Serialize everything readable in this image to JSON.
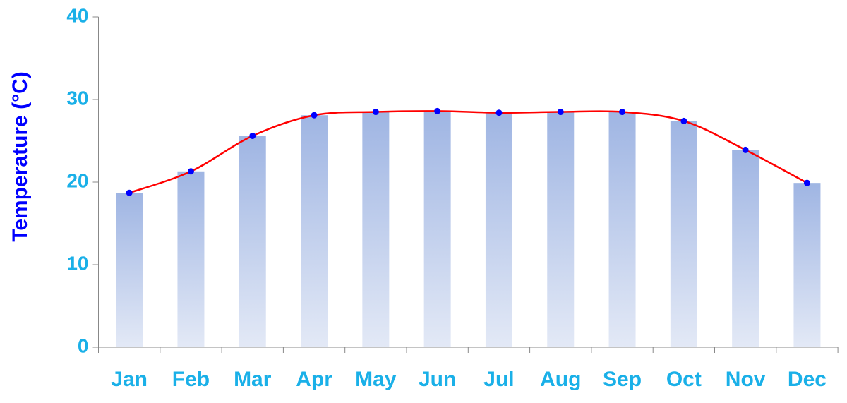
{
  "chart_data": {
    "type": "combo",
    "y_label": "Temperature (°C)",
    "categories": [
      "Jan",
      "Feb",
      "Mar",
      "Apr",
      "May",
      "Jun",
      "Jul",
      "Aug",
      "Sep",
      "Oct",
      "Nov",
      "Dec"
    ],
    "values": [
      18.7,
      21.3,
      25.6,
      28.1,
      28.5,
      28.6,
      28.4,
      28.5,
      28.5,
      27.4,
      23.9,
      19.9
    ],
    "bar_color": "#9fb5e3",
    "line_color": "#ff0000",
    "marker_color": "#0000ff",
    "ylim": [
      0,
      40
    ],
    "yticks": [
      0,
      10,
      20,
      30,
      40
    ],
    "grid": false
  }
}
